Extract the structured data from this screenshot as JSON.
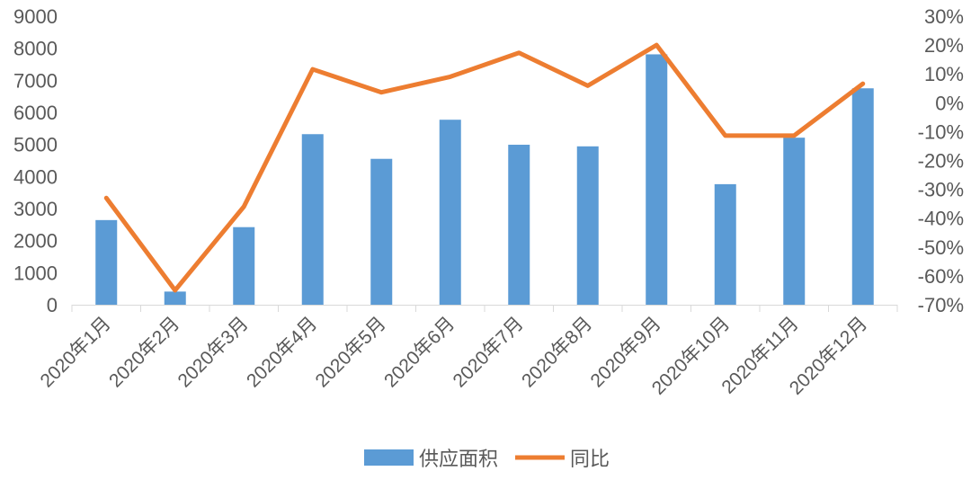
{
  "chart_data": {
    "type": "bar+line",
    "categories": [
      "2020年1月",
      "2020年2月",
      "2020年3月",
      "2020年4月",
      "2020年5月",
      "2020年6月",
      "2020年7月",
      "2020年8月",
      "2020年9月",
      "2020年10月",
      "2020年11月",
      "2020年12月"
    ],
    "series": [
      {
        "name": "供应面积",
        "type": "bar",
        "axis": "left",
        "color": "#5B9BD5",
        "values": [
          2640,
          410,
          2420,
          5320,
          4550,
          5770,
          4990,
          4940,
          7810,
          3760,
          5210,
          6750
        ]
      },
      {
        "name": "同比",
        "type": "line",
        "axis": "right",
        "color": "#ED7D31",
        "values": [
          -33,
          -65,
          -36,
          11.6,
          3.6,
          9,
          17.3,
          5.9,
          20,
          -11.4,
          -11.4,
          6.6
        ]
      }
    ],
    "ylim_left": [
      0,
      9000
    ],
    "yticks_left": [
      "0",
      "1000",
      "2000",
      "3000",
      "4000",
      "5000",
      "6000",
      "7000",
      "8000",
      "9000"
    ],
    "ylim_right": [
      -70,
      30
    ],
    "yticks_right": [
      "-70%",
      "-60%",
      "-50%",
      "-40%",
      "-30%",
      "-20%",
      "-10%",
      "0%",
      "10%",
      "20%",
      "30%"
    ],
    "grid": false,
    "legend": "bottom"
  }
}
